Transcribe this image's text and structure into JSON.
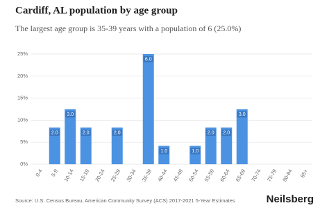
{
  "chart_data": {
    "type": "bar",
    "title": "Cardiff, AL population by age group",
    "subtitle": "The largest age group is 35-39 years with a population of 6 (25.0%)",
    "categories": [
      "0-4",
      "5-9",
      "10-14",
      "15-19",
      "20-24",
      "25-29",
      "30-34",
      "35-39",
      "40-44",
      "45-49",
      "50-54",
      "55-59",
      "60-64",
      "65-69",
      "70-74",
      "75-79",
      "80-84",
      "85+"
    ],
    "values": [
      0,
      8.33,
      12.5,
      8.33,
      0,
      8.33,
      0,
      25,
      4.17,
      0,
      4.17,
      8.33,
      8.33,
      12.5,
      0,
      0,
      0,
      0
    ],
    "value_labels": [
      null,
      "2.0",
      "3.0",
      "2.0",
      null,
      "2.0",
      null,
      "6.0",
      "1.0",
      null,
      "1.0",
      "2.0",
      "2.0",
      "3.0",
      null,
      null,
      null,
      null
    ],
    "color": "#4b92e3",
    "ylim": [
      0,
      25
    ],
    "yticks": [
      {
        "value": 0,
        "label": "0%"
      },
      {
        "value": 5,
        "label": "5%"
      },
      {
        "value": 10,
        "label": "10%"
      },
      {
        "value": 15,
        "label": "15%"
      },
      {
        "value": 20,
        "label": "20%"
      },
      {
        "value": 25,
        "label": "25%"
      }
    ],
    "grid": true,
    "source": "Source: U.S. Census Bureau, American Community Survey (ACS) 2017-2021 5-Year Estimates",
    "brand": "Neilsberg"
  }
}
